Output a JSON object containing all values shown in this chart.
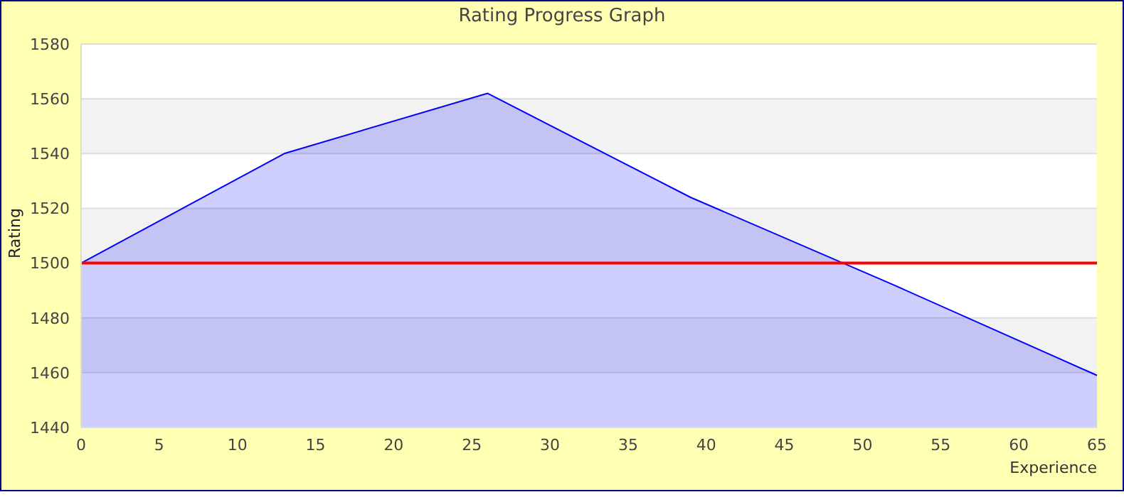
{
  "chart_data": {
    "type": "area",
    "title": "Rating Progress Graph",
    "xlabel": "Experience",
    "ylabel": "Rating",
    "x": [
      0,
      13,
      26,
      39,
      52,
      65
    ],
    "series": [
      {
        "color": "#0000ff",
        "values": [
          1500,
          1540,
          1562,
          1524,
          1492,
          1459
        ]
      }
    ],
    "xlim": [
      0,
      65
    ],
    "xticks": [
      0,
      5,
      10,
      15,
      20,
      25,
      30,
      35,
      40,
      45,
      50,
      55,
      60,
      65
    ],
    "ylim": [
      1440,
      1580
    ],
    "yticks": [
      1440,
      1460,
      1480,
      1500,
      1520,
      1540,
      1560,
      1580
    ],
    "ref_lines": [
      {
        "axis": "y",
        "value": 1500,
        "color": "#ff0000"
      }
    ],
    "grid": "y"
  }
}
